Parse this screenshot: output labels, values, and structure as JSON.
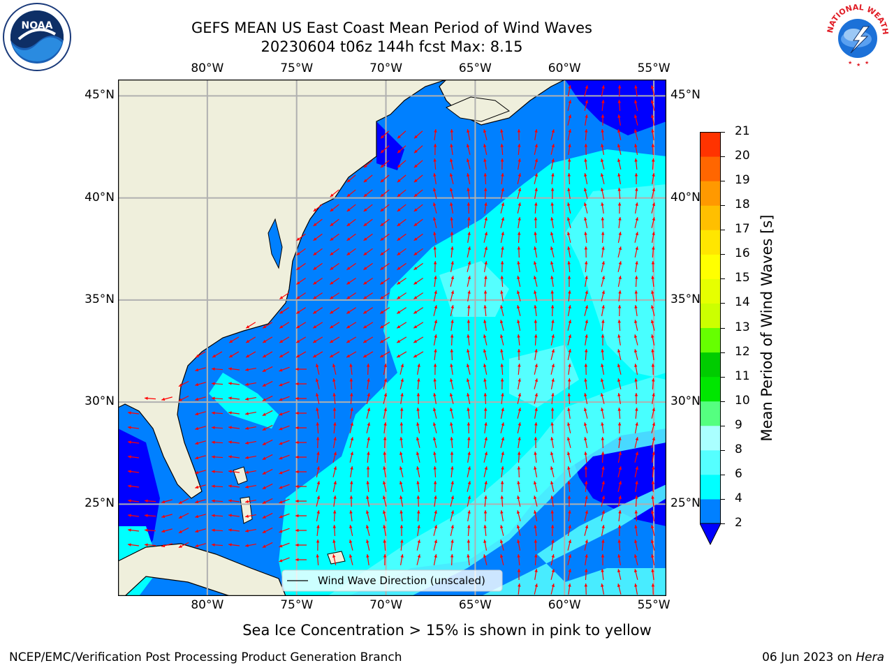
{
  "header": {
    "title_line1": "GEFS MEAN US East Coast Mean Period of Wind Waves",
    "title_line2": "20230604 t06z 144h fcst   Max: 8.15"
  },
  "logos": {
    "left_icon": "noaa-logo-icon",
    "left_text": "NOAA",
    "right_icon": "nws-logo-icon",
    "right_text": "NATIONAL WEATHER SERVICE"
  },
  "map": {
    "lon_labels": [
      "80°W",
      "75°W",
      "70°W",
      "65°W",
      "60°W",
      "55°W"
    ],
    "lat_labels": [
      "45°N",
      "40°N",
      "35°N",
      "30°N",
      "25°N"
    ],
    "lon_values": [
      -80,
      -75,
      -70,
      -65,
      -60,
      -55
    ],
    "lat_values": [
      45,
      40,
      35,
      30,
      25
    ],
    "extent": {
      "lon_min": -85,
      "lon_max": -54.3,
      "lat_min": 20.5,
      "lat_max": 45.8
    },
    "legend_label": "Wind Wave Direction (unscaled)",
    "colors": {
      "land": "#efefdc",
      "band_2_4": "#0080ff",
      "band_4_6": "#00ffff",
      "band_6_8": "#55ffff",
      "below_2": "#0000ff",
      "arrow": "#ff0000",
      "grid": "#b0b0b0"
    }
  },
  "colorbar": {
    "label": "Mean Period of Wind Waves [s]",
    "ticks": [
      "2",
      "4",
      "6",
      "8",
      "9",
      "10",
      "11",
      "12",
      "13",
      "14",
      "15",
      "16",
      "17",
      "18",
      "19",
      "20",
      "21"
    ],
    "colors": [
      "#0080ff",
      "#00ffff",
      "#55ffff",
      "#aaffff",
      "#55ff80",
      "#00e600",
      "#00cc00",
      "#66ff00",
      "#ccff00",
      "#e6ff00",
      "#ffff00",
      "#ffe600",
      "#ffbf00",
      "#ff9900",
      "#ff6600",
      "#ff3300"
    ],
    "under_color": "#0000ff"
  },
  "notes": {
    "sea_ice": "Sea Ice Concentration > 15% is shown in pink to yellow"
  },
  "footer": {
    "left": "NCEP/EMC/Verification Post Processing Product Generation Branch",
    "right_prefix": "06 Jun 2023 on",
    "right_host": "Hera"
  }
}
